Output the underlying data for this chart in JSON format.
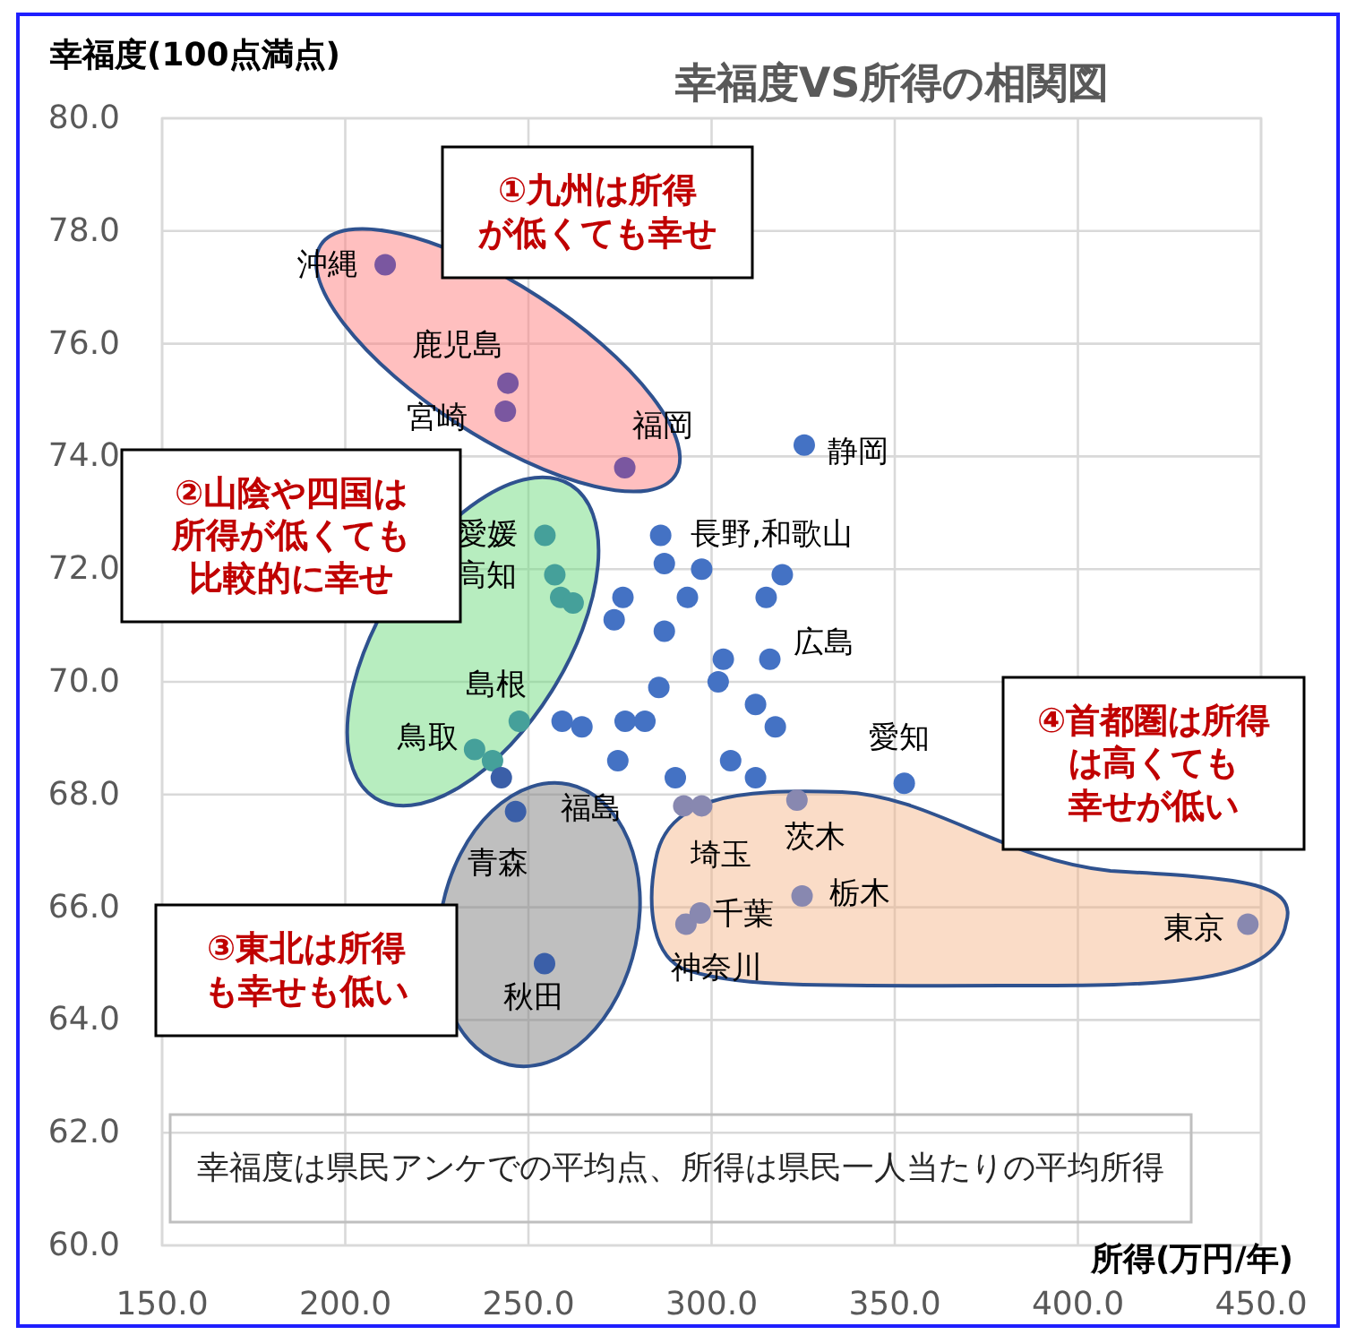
{
  "chart_data": {
    "type": "scatter",
    "title": "幸福度VS所得の相関図",
    "xlabel": "所得(万円/年)",
    "ylabel": "幸福度(100点満点)",
    "colors": [
      "#7a57a0",
      "#7a57a0",
      "#7a57a0",
      "#7a57a0",
      "#4472c4",
      "#4472c4",
      "#45a09a",
      "#45a09a",
      "#45a09a",
      "#45a09a",
      "#4472c4",
      "#4472c4",
      "#4472c4",
      "#4472c4",
      "#4472c4",
      "#4472c4",
      "#4472c4",
      "#4472c4",
      "#4472c4",
      "#4472c4",
      "#4472c4",
      "#4472c4",
      "#4472c4",
      "#4472c4",
      "#45a09a",
      "#4472c4",
      "#4472c4",
      "#4472c4",
      "#4472c4",
      "#45a09a",
      "#45a09a",
      "#3b5fa8",
      "#4472c4",
      "#4472c4",
      "#4472c4",
      "#4472c4",
      "#4472c4",
      "#3b5fa8",
      "#8888b0",
      "#8888b0",
      "#8888b0",
      "#8888b0",
      "#8888b0",
      "#8888b0",
      "#3b5fa8",
      "#8888b0"
    ],
    "marker": "circle",
    "grid": true,
    "xlim": [
      150,
      450
    ],
    "ylim": [
      60,
      80
    ],
    "xticks": [
      {
        "value": 150,
        "label": "150.0"
      },
      {
        "value": 200,
        "label": "200.0"
      },
      {
        "value": 250,
        "label": "250.0"
      },
      {
        "value": 300,
        "label": "300.0"
      },
      {
        "value": 350,
        "label": "350.0"
      },
      {
        "value": 400,
        "label": "400.0"
      },
      {
        "value": 450,
        "label": "450.0"
      }
    ],
    "yticks": [
      {
        "value": 60,
        "label": "60.0"
      },
      {
        "value": 62,
        "label": "62.0"
      },
      {
        "value": 64,
        "label": "64.0"
      },
      {
        "value": 66,
        "label": "66.0"
      },
      {
        "value": 68,
        "label": "68.0"
      },
      {
        "value": 70,
        "label": "70.0"
      },
      {
        "value": 72,
        "label": "72.0"
      },
      {
        "value": 74,
        "label": "74.0"
      },
      {
        "value": 76,
        "label": "76.0"
      },
      {
        "value": 78,
        "label": "78.0"
      },
      {
        "value": 80,
        "label": "80.0"
      }
    ],
    "x": [
      210.9,
      244.4,
      243.7,
      276.3,
      325.3,
      286.1,
      254.5,
      257.2,
      258.8,
      262.2,
      287.1,
      297.3,
      319.3,
      314.9,
      293.4,
      275.8,
      273.4,
      287.1,
      303.2,
      315.9,
      301.8,
      285.6,
      312.0,
      317.4,
      247.5,
      259.2,
      264.6,
      276.4,
      281.8,
      235.3,
      240.2,
      242.6,
      274.4,
      305.2,
      290.1,
      312.0,
      352.6,
      246.5,
      292.4,
      297.3,
      323.3,
      324.7,
      293.0,
      296.9,
      254.4,
      446.4
    ],
    "values": [
      77.4,
      75.3,
      74.8,
      73.8,
      74.2,
      72.6,
      72.6,
      71.9,
      71.5,
      71.4,
      72.1,
      72.0,
      71.9,
      71.5,
      71.5,
      71.5,
      71.1,
      70.9,
      70.4,
      70.4,
      70.0,
      69.9,
      69.6,
      69.2,
      69.3,
      69.3,
      69.2,
      69.3,
      69.3,
      68.8,
      68.6,
      68.3,
      68.6,
      68.6,
      68.3,
      68.3,
      68.2,
      67.7,
      67.8,
      67.8,
      67.9,
      66.2,
      65.7,
      65.9,
      65.0,
      65.7
    ],
    "annotations": [
      {
        "text": "沖縄",
        "x": 210.9,
        "y": 77.4
      },
      {
        "text": "鹿児島",
        "x": 244.4,
        "y": 75.3
      },
      {
        "text": "宮崎",
        "x": 243.7,
        "y": 74.8
      },
      {
        "text": "福岡",
        "x": 276.3,
        "y": 73.8
      },
      {
        "text": "静岡",
        "x": 325.3,
        "y": 74.2
      },
      {
        "text": "長野,和歌山",
        "x": 286.1,
        "y": 72.6
      },
      {
        "text": "愛媛",
        "x": 254.5,
        "y": 72.6
      },
      {
        "text": "高知",
        "x": 257.2,
        "y": 71.9
      },
      {
        "text": "広島",
        "x": 315.9,
        "y": 70.4
      },
      {
        "text": "島根",
        "x": 247.5,
        "y": 69.3
      },
      {
        "text": "鳥取",
        "x": 235.3,
        "y": 68.8
      },
      {
        "text": "愛知",
        "x": 352.6,
        "y": 68.2
      },
      {
        "text": "福島",
        "x": 274.4,
        "y": 68.6
      },
      {
        "text": "青森",
        "x": 246.5,
        "y": 67.7
      },
      {
        "text": "埼玉",
        "x": 292.4,
        "y": 67.8
      },
      {
        "text": "茨木",
        "x": 323.3,
        "y": 67.9
      },
      {
        "text": "栃木",
        "x": 324.7,
        "y": 66.2
      },
      {
        "text": "千葉",
        "x": 296.9,
        "y": 65.9
      },
      {
        "text": "神奈川",
        "x": 293.0,
        "y": 65.7
      },
      {
        "text": "秋田",
        "x": 254.4,
        "y": 65.0
      },
      {
        "text": "東京",
        "x": 446.4,
        "y": 65.7
      },
      "①九州は所得が低くても幸せ",
      "②山陰や四国は所得が低くても比較的に幸せ",
      "③東北は所得も幸せも低い",
      "④首都圏は所得は高くても幸せが低い",
      "幸福度は県民アンケでの平均点、所得は県民一人当たりの平均所得"
    ]
  }
}
